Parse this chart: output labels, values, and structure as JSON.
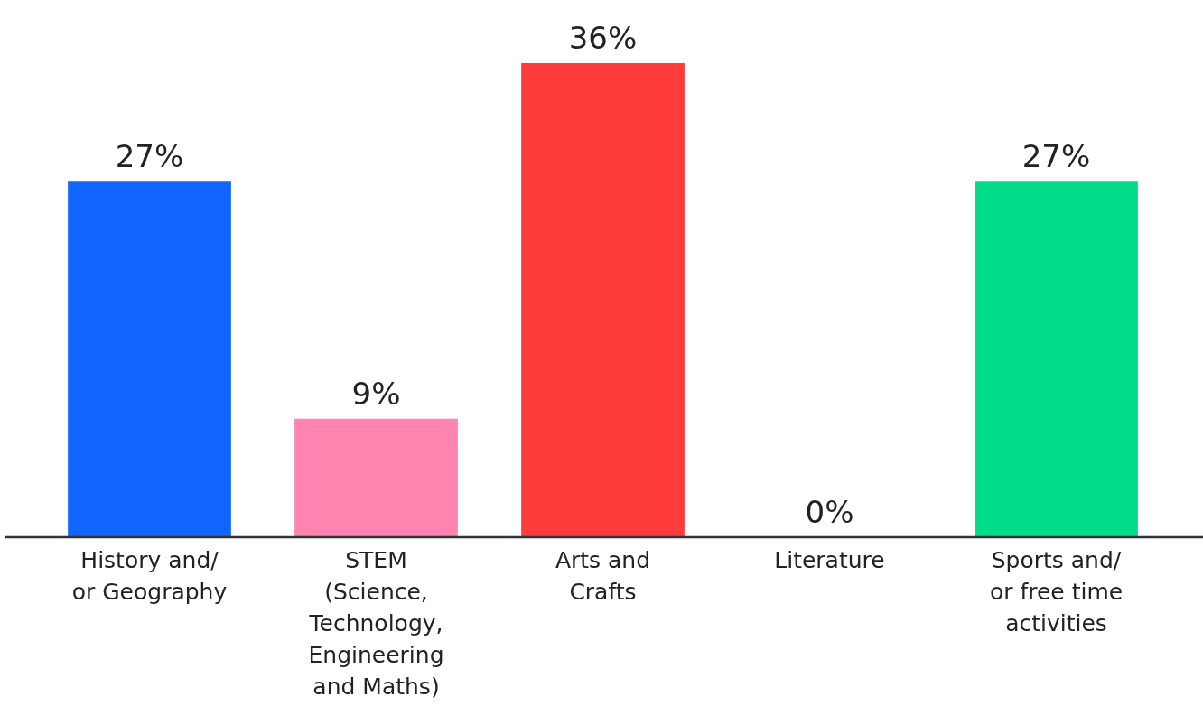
{
  "chart_data": {
    "type": "bar",
    "categories": [
      "History and/or Geography",
      "STEM (Science, Technology, Engineering and Maths)",
      "Arts and Crafts",
      "Literature",
      "Sports and/or free time activities"
    ],
    "values": [
      27,
      9,
      36,
      0,
      27
    ],
    "colors": [
      "#1166ff",
      "#ff84b0",
      "#ff3c3c",
      "#9aa0aa",
      "#00dc8a"
    ],
    "value_labels": [
      "27%",
      "9%",
      "36%",
      "0%",
      "27%"
    ]
  }
}
